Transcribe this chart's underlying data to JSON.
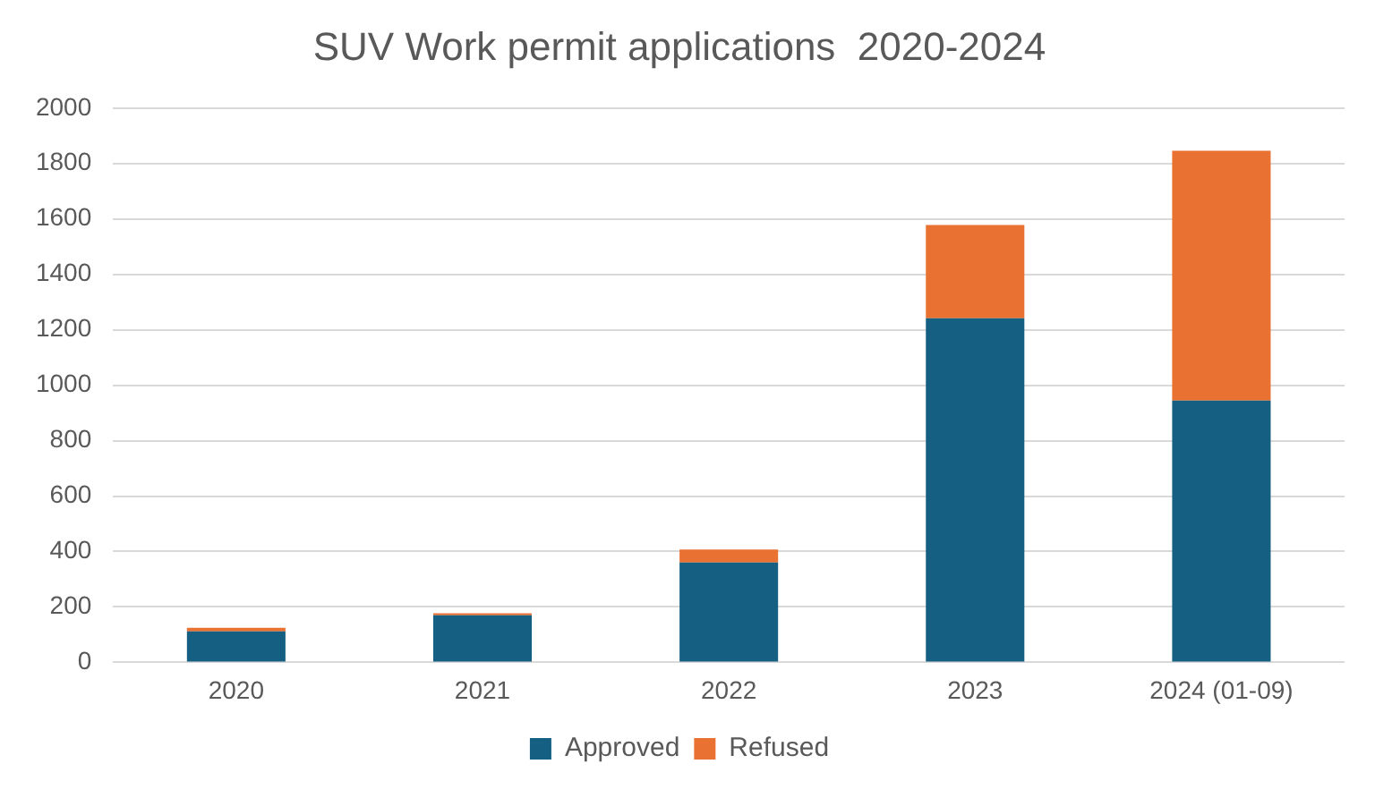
{
  "chart_data": {
    "type": "bar",
    "title": "SUV Work permit applications  2020-2024",
    "categories": [
      "2020",
      "2021",
      "2022",
      "2023",
      "2024 (01-09)"
    ],
    "series": [
      {
        "name": "Approved",
        "color": "#156082",
        "values": [
          112,
          170,
          360,
          1242,
          945
        ]
      },
      {
        "name": "Refused",
        "color": "#e97132",
        "values": [
          13,
          7,
          47,
          336,
          901
        ]
      }
    ],
    "stacked": true,
    "ylim": [
      0,
      2000
    ],
    "yticks": [
      0,
      200,
      400,
      600,
      800,
      1000,
      1200,
      1400,
      1600,
      1800,
      2000
    ],
    "grid": "y",
    "legend": "bottom"
  }
}
